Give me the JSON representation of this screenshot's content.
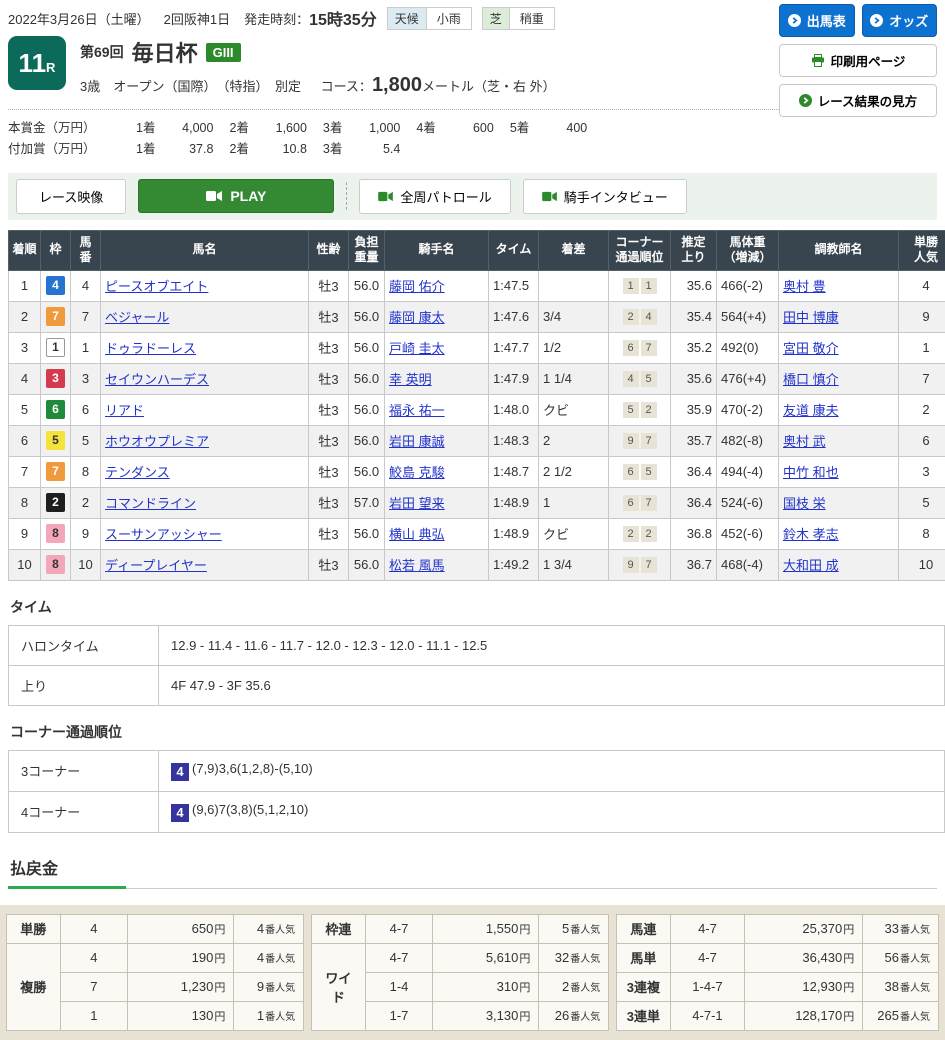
{
  "header": {
    "date": "2022年3月26日（土曜）",
    "meeting": "2回阪神1日",
    "start_label": "発走時刻：",
    "start_time": "15時35分",
    "weather_label": "天候",
    "weather_value": "小雨",
    "turf_label": "芝",
    "turf_value": "稍重",
    "btn_entries": "出馬表",
    "btn_odds": "オッズ",
    "btn_print": "印刷用ページ",
    "btn_guide": "レース結果の見方"
  },
  "race": {
    "number": "11",
    "number_suffix": "R",
    "edition": "第69回",
    "name": "毎日杯",
    "grade": "GIII",
    "conditions": "3歳　オープン（国際）　（特指）　別定",
    "course_label": "コース：",
    "course_value": "1,800",
    "course_unit": "メートル（芝・右 外）"
  },
  "prize": {
    "main_label": "本賞金（万円）",
    "main": [
      {
        "place": "1着",
        "value": "4,000"
      },
      {
        "place": "2着",
        "value": "1,600"
      },
      {
        "place": "3着",
        "value": "1,000"
      },
      {
        "place": "4着",
        "value": "600"
      },
      {
        "place": "5着",
        "value": "400"
      }
    ],
    "added_label": "付加賞（万円）",
    "added": [
      {
        "place": "1着",
        "value": "37.8"
      },
      {
        "place": "2着",
        "value": "10.8"
      },
      {
        "place": "3着",
        "value": "5.4"
      }
    ]
  },
  "video": {
    "label": "レース映像",
    "play": "PLAY",
    "patrol": "全周パトロール",
    "interview": "騎手インタビュー"
  },
  "results": {
    "columns": [
      {
        "l1": "着順",
        "l2": ""
      },
      {
        "l1": "枠",
        "l2": ""
      },
      {
        "l1": "馬",
        "l2": "番"
      },
      {
        "l1": "馬名",
        "l2": ""
      },
      {
        "l1": "性齢",
        "l2": ""
      },
      {
        "l1": "負担",
        "l2": "重量"
      },
      {
        "l1": "騎手名",
        "l2": ""
      },
      {
        "l1": "タイム",
        "l2": ""
      },
      {
        "l1": "着差",
        "l2": ""
      },
      {
        "l1": "コーナー",
        "l2": "通過順位"
      },
      {
        "l1": "推定",
        "l2": "上り"
      },
      {
        "l1": "馬体重",
        "l2": "（増減）"
      },
      {
        "l1": "調教師名",
        "l2": ""
      },
      {
        "l1": "単勝",
        "l2": "人気"
      }
    ],
    "rows": [
      {
        "pos": "1",
        "frame": "4",
        "num": "4",
        "horse": "ピースオブエイト",
        "sex_age": "牡3",
        "weight": "56.0",
        "jockey": "藤岡 佑介",
        "time": "1:47.5",
        "margin": "",
        "corners": [
          "1",
          "1"
        ],
        "last3f": "35.6",
        "body": "466(-2)",
        "trainer": "奥村 豊",
        "pop": "4"
      },
      {
        "pos": "2",
        "frame": "7",
        "num": "7",
        "horse": "ベジャール",
        "sex_age": "牡3",
        "weight": "56.0",
        "jockey": "藤岡 康太",
        "time": "1:47.6",
        "margin": "3/4",
        "corners": [
          "2",
          "4"
        ],
        "last3f": "35.4",
        "body": "564(+4)",
        "trainer": "田中 博康",
        "pop": "9"
      },
      {
        "pos": "3",
        "frame": "1",
        "num": "1",
        "horse": "ドゥラドーレス",
        "sex_age": "牡3",
        "weight": "56.0",
        "jockey": "戸崎 圭太",
        "time": "1:47.7",
        "margin": "1/2",
        "corners": [
          "6",
          "7"
        ],
        "last3f": "35.2",
        "body": "492(0)",
        "trainer": "宮田 敬介",
        "pop": "1"
      },
      {
        "pos": "4",
        "frame": "3",
        "num": "3",
        "horse": "セイウンハーデス",
        "sex_age": "牡3",
        "weight": "56.0",
        "jockey": "幸 英明",
        "time": "1:47.9",
        "margin": "1 1/4",
        "corners": [
          "4",
          "5"
        ],
        "last3f": "35.6",
        "body": "476(+4)",
        "trainer": "橋口 慎介",
        "pop": "7"
      },
      {
        "pos": "5",
        "frame": "6",
        "num": "6",
        "horse": "リアド",
        "sex_age": "牡3",
        "weight": "56.0",
        "jockey": "福永 祐一",
        "time": "1:48.0",
        "margin": "クビ",
        "corners": [
          "5",
          "2"
        ],
        "last3f": "35.9",
        "body": "470(-2)",
        "trainer": "友道 康夫",
        "pop": "2"
      },
      {
        "pos": "6",
        "frame": "5",
        "num": "5",
        "horse": "ホウオウプレミア",
        "sex_age": "牡3",
        "weight": "56.0",
        "jockey": "岩田 康誠",
        "time": "1:48.3",
        "margin": "2",
        "corners": [
          "9",
          "7"
        ],
        "last3f": "35.7",
        "body": "482(-8)",
        "trainer": "奥村 武",
        "pop": "6"
      },
      {
        "pos": "7",
        "frame": "7",
        "num": "8",
        "horse": "テンダンス",
        "sex_age": "牡3",
        "weight": "56.0",
        "jockey": "鮫島 克駿",
        "time": "1:48.7",
        "margin": "2 1/2",
        "corners": [
          "6",
          "5"
        ],
        "last3f": "36.4",
        "body": "494(-4)",
        "trainer": "中竹 和也",
        "pop": "3"
      },
      {
        "pos": "8",
        "frame": "2",
        "num": "2",
        "horse": "コマンドライン",
        "sex_age": "牡3",
        "weight": "57.0",
        "jockey": "岩田 望来",
        "time": "1:48.9",
        "margin": "1",
        "corners": [
          "6",
          "7"
        ],
        "last3f": "36.4",
        "body": "524(-6)",
        "trainer": "国枝 栄",
        "pop": "5"
      },
      {
        "pos": "9",
        "frame": "8",
        "num": "9",
        "horse": "スーサンアッシャー",
        "sex_age": "牡3",
        "weight": "56.0",
        "jockey": "横山 典弘",
        "time": "1:48.9",
        "margin": "クビ",
        "corners": [
          "2",
          "2"
        ],
        "last3f": "36.8",
        "body": "452(-6)",
        "trainer": "鈴木 孝志",
        "pop": "8"
      },
      {
        "pos": "10",
        "frame": "8",
        "num": "10",
        "horse": "ディープレイヤー",
        "sex_age": "牡3",
        "weight": "56.0",
        "jockey": "松若 風馬",
        "time": "1:49.2",
        "margin": "1 3/4",
        "corners": [
          "9",
          "7"
        ],
        "last3f": "36.7",
        "body": "468(-4)",
        "trainer": "大和田 成",
        "pop": "10"
      }
    ]
  },
  "time_section": {
    "title": "タイム",
    "rows": [
      [
        "ハロンタイム",
        "12.9 - 11.4 - 11.6 - 11.7 - 12.0 - 12.3 - 12.0 - 11.1 - 12.5"
      ],
      [
        "上り",
        "4F 47.9 - 3F 35.6"
      ]
    ]
  },
  "corner_section": {
    "title": "コーナー通過順位",
    "rows": [
      {
        "label": "3コーナー",
        "leader": "4",
        "order": "(7,9)3,6(1,2,8)-(5,10)"
      },
      {
        "label": "4コーナー",
        "leader": "4",
        "order": "(9,6)7(3,8)(5,1,2,10)"
      }
    ]
  },
  "payout": {
    "title": "払戻金",
    "unit": "円",
    "pop_suffix": "番人気",
    "groups": [
      {
        "blocks": [
          {
            "label": "単勝",
            "rows": [
              {
                "combo": "4",
                "amount": "650",
                "pop": "4"
              }
            ]
          },
          {
            "label": "複勝",
            "rows": [
              {
                "combo": "4",
                "amount": "190",
                "pop": "4"
              },
              {
                "combo": "7",
                "amount": "1,230",
                "pop": "9"
              },
              {
                "combo": "1",
                "amount": "130",
                "pop": "1"
              }
            ]
          }
        ]
      },
      {
        "blocks": [
          {
            "label": "枠連",
            "rows": [
              {
                "combo": "4-7",
                "amount": "1,550",
                "pop": "5"
              }
            ]
          },
          {
            "label": "ワイド",
            "rows": [
              {
                "combo": "4-7",
                "amount": "5,610",
                "pop": "32"
              },
              {
                "combo": "1-4",
                "amount": "310",
                "pop": "2"
              },
              {
                "combo": "1-7",
                "amount": "3,130",
                "pop": "26"
              }
            ]
          }
        ]
      },
      {
        "blocks": [
          {
            "label": "馬連",
            "rows": [
              {
                "combo": "4-7",
                "amount": "25,370",
                "pop": "33"
              }
            ]
          },
          {
            "label": "馬単",
            "rows": [
              {
                "combo": "4-7",
                "amount": "36,430",
                "pop": "56"
              }
            ]
          },
          {
            "label": "3連複",
            "rows": [
              {
                "combo": "1-4-7",
                "amount": "12,930",
                "pop": "38"
              }
            ]
          },
          {
            "label": "3連単",
            "rows": [
              {
                "combo": "4-7-1",
                "amount": "128,170",
                "pop": "265"
              }
            ]
          }
        ]
      }
    ]
  }
}
